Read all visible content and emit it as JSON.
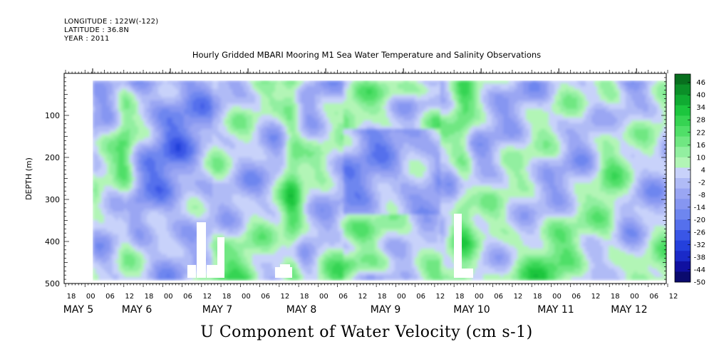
{
  "header": {
    "longitude": "LONGITUDE : 122W(-122)",
    "latitude": "LATITUDE : 36.8N",
    "year": "YEAR : 2011"
  },
  "chart_data": {
    "type": "heatmap",
    "title": "Hourly Gridded MBARI Mooring M1 Sea Water Temperature and Salinity Observations",
    "xlabel": "U Component of Water Velocity (cm s-1)",
    "ylabel": "DEPTH (m)",
    "y_ticks": [
      100,
      200,
      300,
      400,
      500
    ],
    "y_tick_labels": [
      "100",
      "200",
      "300",
      "400",
      "500"
    ],
    "ylim": [
      500,
      0
    ],
    "x_hour_labels": [
      "18",
      "00",
      "06",
      "12",
      "18",
      "00",
      "06",
      "12",
      "18",
      "00",
      "06",
      "12",
      "18",
      "00",
      "06",
      "12",
      "18",
      "00",
      "06",
      "12",
      "18",
      "00",
      "06",
      "12",
      "18",
      "00",
      "06",
      "12",
      "18",
      "00",
      "06",
      "12"
    ],
    "x_day_labels": [
      "MAY  5",
      "MAY  6",
      "MAY  7",
      "MAY  8",
      "MAY  9",
      "MAY 10",
      "MAY 11",
      "MAY 12"
    ],
    "colorbar": {
      "labels": [
        "46",
        "40",
        "34",
        "28",
        "22",
        "16",
        "10",
        "4",
        "-2",
        "-8",
        "-14",
        "-20",
        "-26",
        "-32",
        "-38",
        "-44",
        "-50"
      ],
      "range": [
        -50,
        50
      ]
    },
    "colors": {
      "negative_strong": "#1f3fd6",
      "negative_mid": "#5a78ea",
      "negative_light": "#a8b4f4",
      "positive_light": "#9ef3a8",
      "positive_mid": "#4fe067",
      "positive_strong": "#12c43a"
    }
  }
}
